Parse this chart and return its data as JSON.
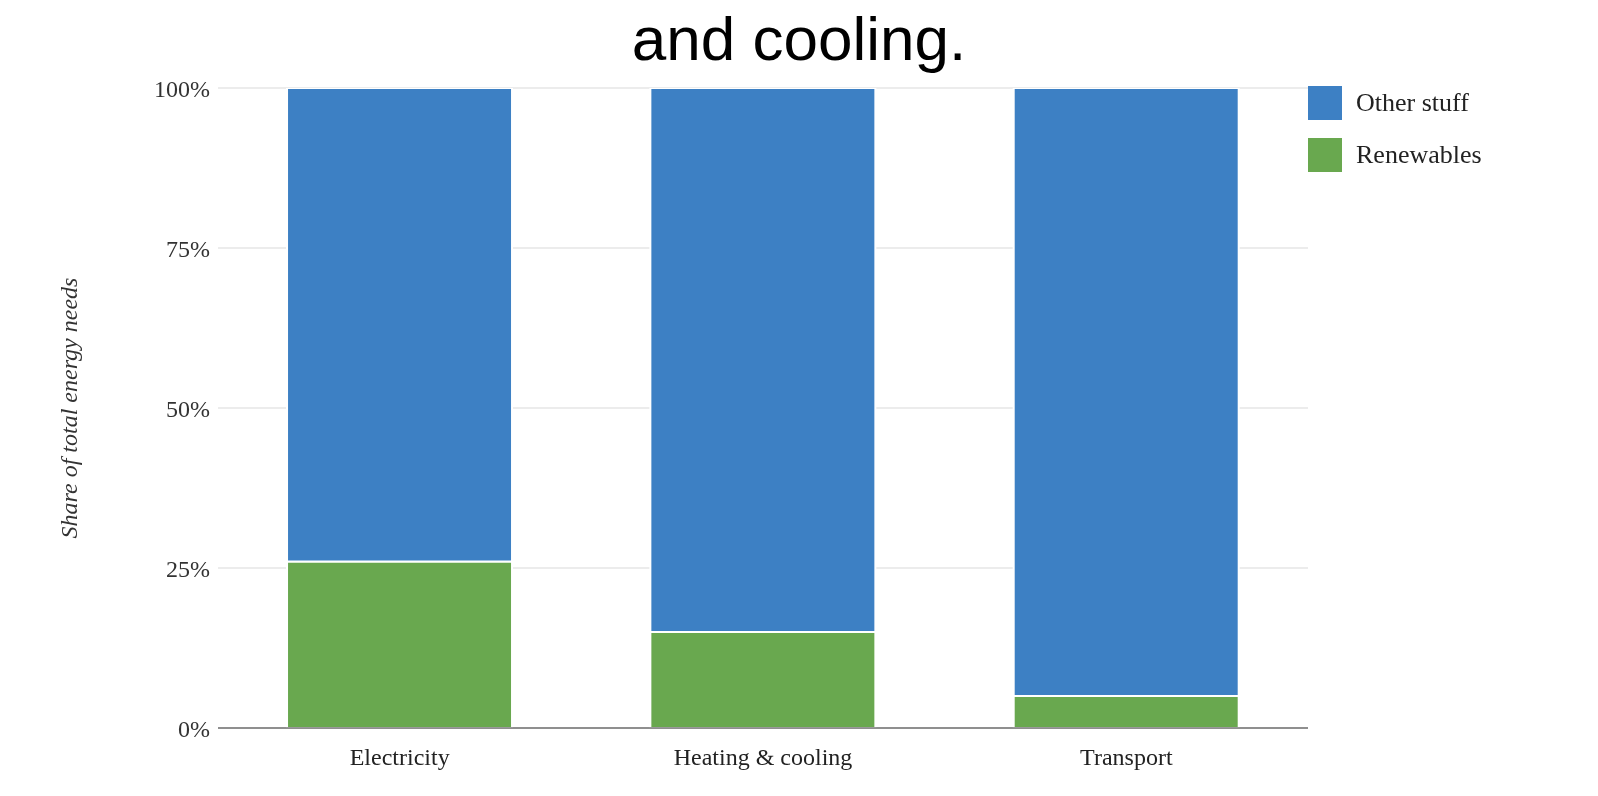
{
  "chart_data": {
    "type": "bar",
    "title": "and cooling.",
    "ylabel": "Share of total energy needs",
    "categories": [
      "Electricity",
      "Heating & cooling",
      "Transport"
    ],
    "stacked": true,
    "series": [
      {
        "name": "Renewables",
        "color": "#69a84f",
        "values": [
          26,
          15,
          5
        ]
      },
      {
        "name": "Other stuff",
        "color": "#3d80c4",
        "values": [
          74,
          85,
          95
        ]
      }
    ],
    "ylim": [
      0,
      100
    ],
    "yticks": [
      {
        "value": 0,
        "label": "0%"
      },
      {
        "value": 25,
        "label": "25%"
      },
      {
        "value": 50,
        "label": "50%"
      },
      {
        "value": 75,
        "label": "75%"
      },
      {
        "value": 100,
        "label": "100%"
      }
    ],
    "grid": "y",
    "legend": "top right"
  }
}
